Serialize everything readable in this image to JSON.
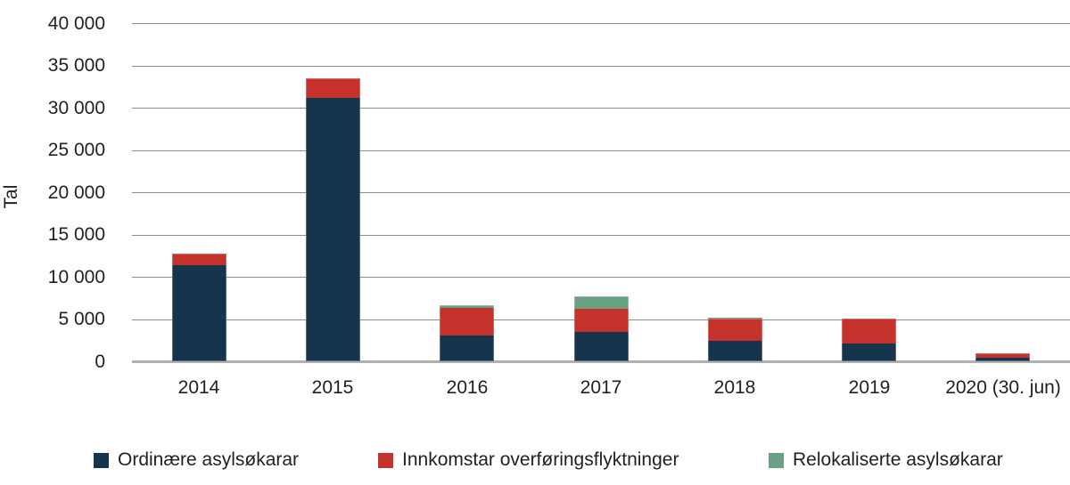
{
  "chart_data": {
    "type": "bar",
    "stacked": true,
    "title": "",
    "xlabel": "",
    "ylabel": "Tal",
    "ylim": [
      0,
      40000
    ],
    "ytick_step": 5000,
    "grid": true,
    "legend_position": "bottom",
    "categories": [
      "2014",
      "2015",
      "2016",
      "2017",
      "2018",
      "2019",
      "2020 (30. jun)"
    ],
    "series": [
      {
        "name": "Ordinære asylsøkarar",
        "color": "#17344d",
        "values": [
          11450,
          31150,
          3150,
          3550,
          2500,
          2150,
          450
        ]
      },
      {
        "name": "Innkomstar overføringsflyktninger",
        "color": "#c5312b",
        "values": [
          1350,
          2350,
          3250,
          2750,
          2550,
          2950,
          500
        ]
      },
      {
        "name": "Relokaliserte asylsøkarar",
        "color": "#69a183",
        "values": [
          0,
          0,
          320,
          1450,
          100,
          0,
          0
        ]
      }
    ]
  },
  "colors": {
    "gridline": "#8c8c8c",
    "baseline": "#b0b0b0",
    "text": "#231f20",
    "background": "#ffffff"
  }
}
